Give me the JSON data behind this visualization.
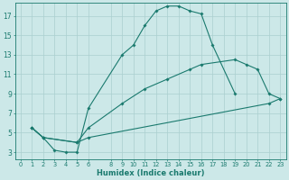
{
  "xlabel": "Humidex (Indice chaleur)",
  "bg_color": "#cce8e8",
  "grid_color": "#aacfcf",
  "line_color": "#1a7a6e",
  "xlim": [
    -0.5,
    23.5
  ],
  "ylim": [
    2.3,
    18.3
  ],
  "xticks": [
    0,
    1,
    2,
    3,
    4,
    5,
    6,
    8,
    9,
    10,
    11,
    12,
    13,
    14,
    15,
    16,
    17,
    18,
    19,
    20,
    21,
    22,
    23
  ],
  "yticks": [
    3,
    5,
    7,
    9,
    11,
    13,
    15,
    17
  ],
  "curve1_x": [
    1,
    2,
    3,
    4,
    5,
    6,
    9,
    10,
    11,
    12,
    13,
    14,
    15,
    16,
    17,
    19
  ],
  "curve1_y": [
    5.5,
    4.5,
    3.2,
    3.0,
    3.0,
    7.5,
    13.0,
    14.0,
    16.0,
    17.5,
    18.0,
    18.0,
    17.5,
    17.2,
    14.0,
    9.0
  ],
  "curve2_x": [
    1,
    2,
    5,
    6,
    9,
    11,
    13,
    15,
    16,
    19,
    20,
    21,
    22,
    23
  ],
  "curve2_y": [
    5.5,
    4.5,
    4.0,
    5.5,
    8.0,
    9.5,
    10.5,
    11.5,
    12.0,
    12.5,
    12.0,
    11.5,
    9.0,
    8.5
  ],
  "curve3_x": [
    1,
    2,
    5,
    6,
    22,
    23
  ],
  "curve3_y": [
    5.5,
    4.5,
    4.0,
    4.5,
    8.0,
    8.5
  ]
}
